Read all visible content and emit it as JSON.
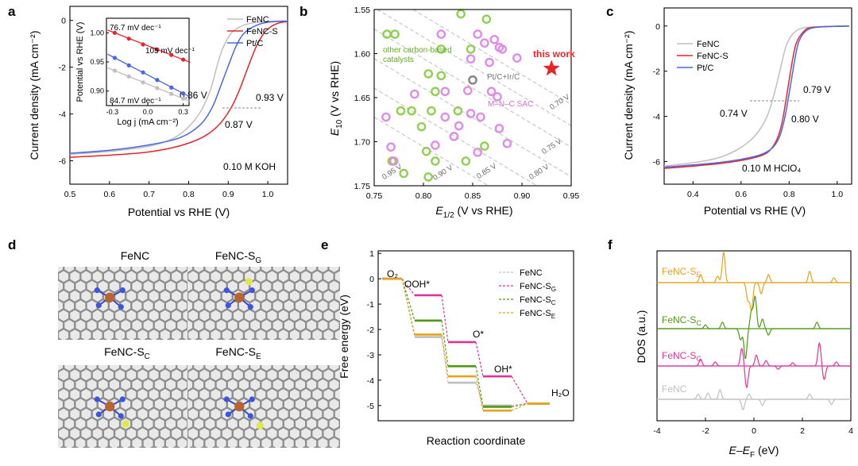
{
  "colors": {
    "fenc": "#bfbfbf",
    "fencs": "#e8242a",
    "ptc": "#4a66e8",
    "green": "#8fd14f",
    "violet": "#e08be8",
    "star": "#e8242a",
    "sg": "#e0339a",
    "sc": "#4f9a12",
    "se": "#e8a21a",
    "dash": "#c8c8c8"
  },
  "panels": {
    "a": "a",
    "b": "b",
    "c": "c",
    "d": "d",
    "e": "e",
    "f": "f"
  },
  "chart_data": [
    {
      "id": "a",
      "type": "line",
      "xlabel": "Potential vs RHE (V)",
      "ylabel": "Current density (mA cm⁻²)",
      "xlim": [
        0.5,
        1.05
      ],
      "ylim": [
        -7,
        0.6
      ],
      "xticks": [
        "0.5",
        "0.6",
        "0.7",
        "0.8",
        "0.9",
        "1.0"
      ],
      "yticks": [
        "0",
        "-2",
        "-4",
        "-6"
      ],
      "legend": [
        "FeNC",
        "FeNC-S",
        "Pt/C"
      ],
      "legend_position": "top-right",
      "electrolyte": "0.10 M KOH",
      "annotations": [
        "0.86 V",
        "0.93 V",
        "0.87 V"
      ],
      "series": [
        {
          "name": "FeNC",
          "color": "fenc",
          "points": [
            [
              0.5,
              -5.72
            ],
            [
              0.6,
              -5.6
            ],
            [
              0.7,
              -5.38
            ],
            [
              0.76,
              -5.05
            ],
            [
              0.8,
              -4.55
            ],
            [
              0.83,
              -3.9
            ],
            [
              0.85,
              -3.2
            ],
            [
              0.86,
              -2.7
            ],
            [
              0.875,
              -1.75
            ],
            [
              0.89,
              -1.05
            ],
            [
              0.91,
              -0.5
            ],
            [
              0.94,
              -0.2
            ],
            [
              0.98,
              -0.06
            ],
            [
              1.05,
              -0.02
            ]
          ]
        },
        {
          "name": "FeNC-S",
          "color": "fencs",
          "points": [
            [
              0.5,
              -5.85
            ],
            [
              0.6,
              -5.76
            ],
            [
              0.7,
              -5.62
            ],
            [
              0.78,
              -5.35
            ],
            [
              0.84,
              -4.95
            ],
            [
              0.88,
              -4.4
            ],
            [
              0.91,
              -3.65
            ],
            [
              0.93,
              -2.9
            ],
            [
              0.95,
              -2.0
            ],
            [
              0.97,
              -1.15
            ],
            [
              0.99,
              -0.55
            ],
            [
              1.01,
              -0.25
            ],
            [
              1.03,
              -0.1
            ],
            [
              1.05,
              -0.05
            ]
          ]
        },
        {
          "name": "Pt/C",
          "color": "ptc",
          "points": [
            [
              0.5,
              -5.68
            ],
            [
              0.6,
              -5.55
            ],
            [
              0.7,
              -5.32
            ],
            [
              0.78,
              -5.0
            ],
            [
              0.83,
              -4.45
            ],
            [
              0.86,
              -3.7
            ],
            [
              0.88,
              -2.85
            ],
            [
              0.9,
              -1.95
            ],
            [
              0.92,
              -1.1
            ],
            [
              0.94,
              -0.55
            ],
            [
              0.97,
              -0.22
            ],
            [
              1.0,
              -0.08
            ],
            [
              1.05,
              -0.03
            ]
          ]
        }
      ],
      "inset": {
        "xlabel": "Log j (mA cm⁻²)",
        "ylabel": "Potential vs RHE (V)",
        "xlim": [
          -0.35,
          0.35
        ],
        "ylim": [
          0.875,
          1.025
        ],
        "xticks": [
          "-0.3",
          "0.0",
          "0.3"
        ],
        "yticks": [
          "1.00",
          "0.95",
          "0.90"
        ],
        "labels": [
          "76.7 mV dec⁻¹",
          "105 mV dec⁻¹",
          "84.7 mV dec⁻¹"
        ],
        "series": [
          {
            "name": "FeNC-S",
            "color": "fencs",
            "points": [
              [
                -0.28,
                1.0
              ],
              [
                -0.16,
                0.99
              ],
              [
                -0.04,
                0.98
              ],
              [
                0.08,
                0.971
              ],
              [
                0.2,
                0.962
              ],
              [
                0.3,
                0.954
              ]
            ]
          },
          {
            "name": "Pt/C",
            "color": "ptc",
            "points": [
              [
                -0.28,
                0.957
              ],
              [
                -0.16,
                0.944
              ],
              [
                -0.04,
                0.932
              ],
              [
                0.08,
                0.919
              ],
              [
                0.2,
                0.906
              ],
              [
                0.3,
                0.896
              ]
            ]
          },
          {
            "name": "FeNC",
            "color": "fenc",
            "points": [
              [
                -0.28,
                0.935
              ],
              [
                -0.16,
                0.925
              ],
              [
                -0.04,
                0.915
              ],
              [
                0.08,
                0.905
              ],
              [
                0.2,
                0.895
              ],
              [
                0.3,
                0.887
              ]
            ]
          }
        ]
      }
    },
    {
      "id": "b",
      "type": "scatter",
      "xlabel": "E1/2 (V vs RHE)",
      "xlabel_main": "E",
      "xlabel_sub": "1/2",
      "xlabel_rest": " (V vs RHE)",
      "ylabel_main": "E",
      "ylabel_sub": "10",
      "ylabel_rest": " (V vs RHE)",
      "xlim": [
        0.75,
        0.95
      ],
      "ylim": [
        1.75,
        1.55
      ],
      "xticks": [
        "0.75",
        "0.80",
        "0.85",
        "0.90",
        "0.95"
      ],
      "yticks": [
        "1.55",
        "1.60",
        "1.65",
        "1.70",
        "1.75"
      ],
      "diagonals": [
        "0.70 V",
        "0.75 V",
        "0.80 V",
        "0.85 V",
        "0.90 V",
        "0.95 V"
      ],
      "labels": {
        "other": "other carbon-based catalysts",
        "other_l1": "other carbon-based",
        "other_l2": "catalysts",
        "ptc": "Pt/C+Ir/C",
        "msac": "M–N–C SAC",
        "this": "this work"
      },
      "green": [
        [
          0.763,
          1.578
        ],
        [
          0.771,
          1.578
        ],
        [
          0.838,
          1.555
        ],
        [
          0.864,
          1.561
        ],
        [
          0.818,
          1.595
        ],
        [
          0.805,
          1.623
        ],
        [
          0.848,
          1.595
        ],
        [
          0.818,
          1.625
        ],
        [
          0.812,
          1.643
        ],
        [
          0.777,
          1.665
        ],
        [
          0.788,
          1.665
        ],
        [
          0.808,
          1.665
        ],
        [
          0.835,
          1.665
        ],
        [
          0.798,
          1.683
        ],
        [
          0.862,
          1.705
        ],
        [
          0.803,
          1.711
        ],
        [
          0.768,
          1.722
        ],
        [
          0.812,
          1.722
        ],
        [
          0.843,
          1.722
        ],
        [
          0.805,
          1.74
        ],
        [
          0.78,
          1.736
        ]
      ],
      "violet": [
        [
          0.818,
          1.578
        ],
        [
          0.855,
          1.578
        ],
        [
          0.862,
          1.588
        ],
        [
          0.872,
          1.584
        ],
        [
          0.877,
          1.593
        ],
        [
          0.848,
          1.606
        ],
        [
          0.867,
          1.61
        ],
        [
          0.895,
          1.605
        ],
        [
          0.88,
          1.595
        ],
        [
          0.791,
          1.646
        ],
        [
          0.822,
          1.643
        ],
        [
          0.845,
          1.642
        ],
        [
          0.869,
          1.643
        ],
        [
          0.875,
          1.649
        ],
        [
          0.858,
          1.672
        ],
        [
          0.848,
          1.668
        ],
        [
          0.822,
          1.672
        ],
        [
          0.836,
          1.682
        ],
        [
          0.762,
          1.672
        ],
        [
          0.767,
          1.706
        ],
        [
          0.812,
          1.704
        ],
        [
          0.877,
          1.685
        ],
        [
          0.831,
          1.694
        ],
        [
          0.855,
          1.712
        ],
        [
          0.885,
          1.702
        ],
        [
          0.77,
          1.722
        ]
      ],
      "ptc_point": [
        0.85,
        1.63
      ],
      "this_work": [
        0.93,
        1.617
      ]
    },
    {
      "id": "c",
      "type": "line",
      "xlabel": "Potential vs RHE (V)",
      "ylabel": "Current density (mA cm⁻²)",
      "xlim": [
        0.28,
        1.06
      ],
      "ylim": [
        -7,
        0.8
      ],
      "xticks": [
        "0.4",
        "0.6",
        "0.8",
        "1.0"
      ],
      "yticks": [
        "0",
        "-2",
        "-4",
        "-6"
      ],
      "legend": [
        "FeNC",
        "FeNC-S",
        "Pt/C"
      ],
      "legend_position": "top-left",
      "electrolyte": "0.10 M HClO₄",
      "annotations": [
        "0.79 V",
        "0.74 V",
        "0.80 V"
      ],
      "series": [
        {
          "name": "FeNC",
          "color": "fenc",
          "points": [
            [
              0.28,
              -6.2
            ],
            [
              0.4,
              -6.05
            ],
            [
              0.5,
              -5.85
            ],
            [
              0.58,
              -5.5
            ],
            [
              0.64,
              -5.05
            ],
            [
              0.68,
              -4.55
            ],
            [
              0.71,
              -3.95
            ],
            [
              0.73,
              -3.3
            ],
            [
              0.75,
              -2.5
            ],
            [
              0.77,
              -1.6
            ],
            [
              0.79,
              -0.8
            ],
            [
              0.82,
              -0.3
            ],
            [
              0.86,
              -0.08
            ],
            [
              0.95,
              -0.02
            ],
            [
              1.05,
              0.0
            ]
          ]
        },
        {
          "name": "FeNC-S",
          "color": "fencs",
          "points": [
            [
              0.28,
              -6.3
            ],
            [
              0.4,
              -6.2
            ],
            [
              0.5,
              -6.1
            ],
            [
              0.6,
              -5.95
            ],
            [
              0.68,
              -5.75
            ],
            [
              0.72,
              -5.5
            ],
            [
              0.75,
              -5.0
            ],
            [
              0.77,
              -4.3
            ],
            [
              0.785,
              -3.4
            ],
            [
              0.8,
              -2.4
            ],
            [
              0.815,
              -1.45
            ],
            [
              0.83,
              -0.75
            ],
            [
              0.86,
              -0.25
            ],
            [
              0.9,
              -0.06
            ],
            [
              1.05,
              0.0
            ]
          ]
        },
        {
          "name": "Pt/C",
          "color": "ptc",
          "points": [
            [
              0.28,
              -6.25
            ],
            [
              0.4,
              -6.15
            ],
            [
              0.5,
              -6.05
            ],
            [
              0.6,
              -5.9
            ],
            [
              0.68,
              -5.7
            ],
            [
              0.73,
              -5.4
            ],
            [
              0.76,
              -4.9
            ],
            [
              0.78,
              -4.15
            ],
            [
              0.795,
              -3.3
            ],
            [
              0.81,
              -2.35
            ],
            [
              0.825,
              -1.4
            ],
            [
              0.84,
              -0.7
            ],
            [
              0.87,
              -0.22
            ],
            [
              0.92,
              -0.05
            ],
            [
              1.05,
              0.0
            ]
          ]
        }
      ]
    },
    {
      "id": "e",
      "type": "line",
      "xlabel": "Reaction coordinate",
      "ylabel": "Free energy (eV)",
      "ylim": [
        -5.6,
        1.1
      ],
      "yticks": [
        "1",
        "0",
        "-1",
        "-2",
        "-3",
        "-4",
        "-5"
      ],
      "step_labels": [
        "O₂",
        "OOH*",
        "O*",
        "OH*",
        "H₂O"
      ],
      "legend": [
        "FeNC",
        "FeNC-SG",
        "FeNC-SC",
        "FeNC-SE"
      ],
      "legend_base": [
        "FeNC",
        "FeNC-S",
        "FeNC-S",
        "FeNC-S"
      ],
      "legend_sub": [
        "",
        "G",
        "C",
        "E"
      ],
      "series": [
        {
          "name": "FeNC",
          "color": "fenc",
          "values": [
            0,
            -2.3,
            -4.1,
            -5.0,
            -4.92
          ]
        },
        {
          "name": "FeNC-SG",
          "color": "sg",
          "values": [
            0,
            -0.65,
            -2.5,
            -3.85,
            -4.92
          ]
        },
        {
          "name": "FeNC-SC",
          "color": "sc",
          "values": [
            0,
            -1.65,
            -3.45,
            -5.05,
            -4.92
          ]
        },
        {
          "name": "FeNC-SE",
          "color": "se",
          "values": [
            0,
            -2.2,
            -3.85,
            -5.2,
            -4.92
          ]
        }
      ]
    },
    {
      "id": "f",
      "type": "line",
      "xlabel": "E–EF (eV)",
      "xlabel_main": "E–E",
      "xlabel_sub": "F",
      "xlabel_rest": " (eV)",
      "ylabel": "DOS (a.u.)",
      "xlim": [
        -4,
        4
      ],
      "xticks": [
        "-4",
        "-2",
        "0",
        "2",
        "4"
      ],
      "series_labels": [
        "FeNC-SE",
        "FeNC-SC",
        "FeNC-SG",
        "FeNC"
      ],
      "series_label_base": [
        "FeNC-S",
        "FeNC-S",
        "FeNC-S",
        "FeNC"
      ],
      "series_label_sub": [
        "E",
        "C",
        "G",
        ""
      ],
      "series": [
        {
          "name": "FeNC-SE",
          "color": "se",
          "peaks": [
            [
              -2.2,
              0.25
            ],
            [
              -1.5,
              0.2
            ],
            [
              -1.25,
              0.95
            ],
            [
              -0.25,
              -0.55
            ],
            [
              -0.1,
              -0.85
            ],
            [
              0.3,
              -0.35
            ],
            [
              0.6,
              0.25
            ],
            [
              2.3,
              0.35
            ],
            [
              3.3,
              0.15
            ]
          ]
        },
        {
          "name": "FeNC-SC",
          "color": "sc",
          "peaks": [
            [
              -2.0,
              0.12
            ],
            [
              -1.3,
              0.2
            ],
            [
              -0.55,
              -0.35
            ],
            [
              -0.35,
              -0.95
            ],
            [
              -0.1,
              0.55
            ],
            [
              0.05,
              1.0
            ],
            [
              0.35,
              0.3
            ],
            [
              0.6,
              -0.2
            ],
            [
              2.6,
              0.2
            ]
          ]
        },
        {
          "name": "FeNC-SG",
          "color": "sg",
          "peaks": [
            [
              -2.2,
              0.25
            ],
            [
              -1.6,
              0.15
            ],
            [
              -0.5,
              0.65
            ],
            [
              -0.3,
              -0.8
            ],
            [
              0.1,
              0.4
            ],
            [
              0.5,
              0.2
            ],
            [
              1.0,
              -0.12
            ],
            [
              1.6,
              0.12
            ],
            [
              2.7,
              0.85
            ],
            [
              2.9,
              -0.5
            ],
            [
              3.4,
              0.15
            ]
          ]
        },
        {
          "name": "FeNC",
          "color": "fenc",
          "peaks": [
            [
              -2.3,
              0.3
            ],
            [
              -1.9,
              0.35
            ],
            [
              -1.4,
              0.55
            ],
            [
              -0.45,
              -0.6
            ],
            [
              -0.2,
              0.3
            ],
            [
              0.35,
              -0.35
            ],
            [
              2.3,
              0.3
            ],
            [
              3.2,
              -0.3
            ]
          ]
        }
      ]
    }
  ],
  "structures": {
    "labels": [
      "FeNC",
      "FeNC-S",
      "FeNC-S",
      "FeNC-S"
    ],
    "subs": [
      "",
      "G",
      "C",
      "E"
    ]
  }
}
